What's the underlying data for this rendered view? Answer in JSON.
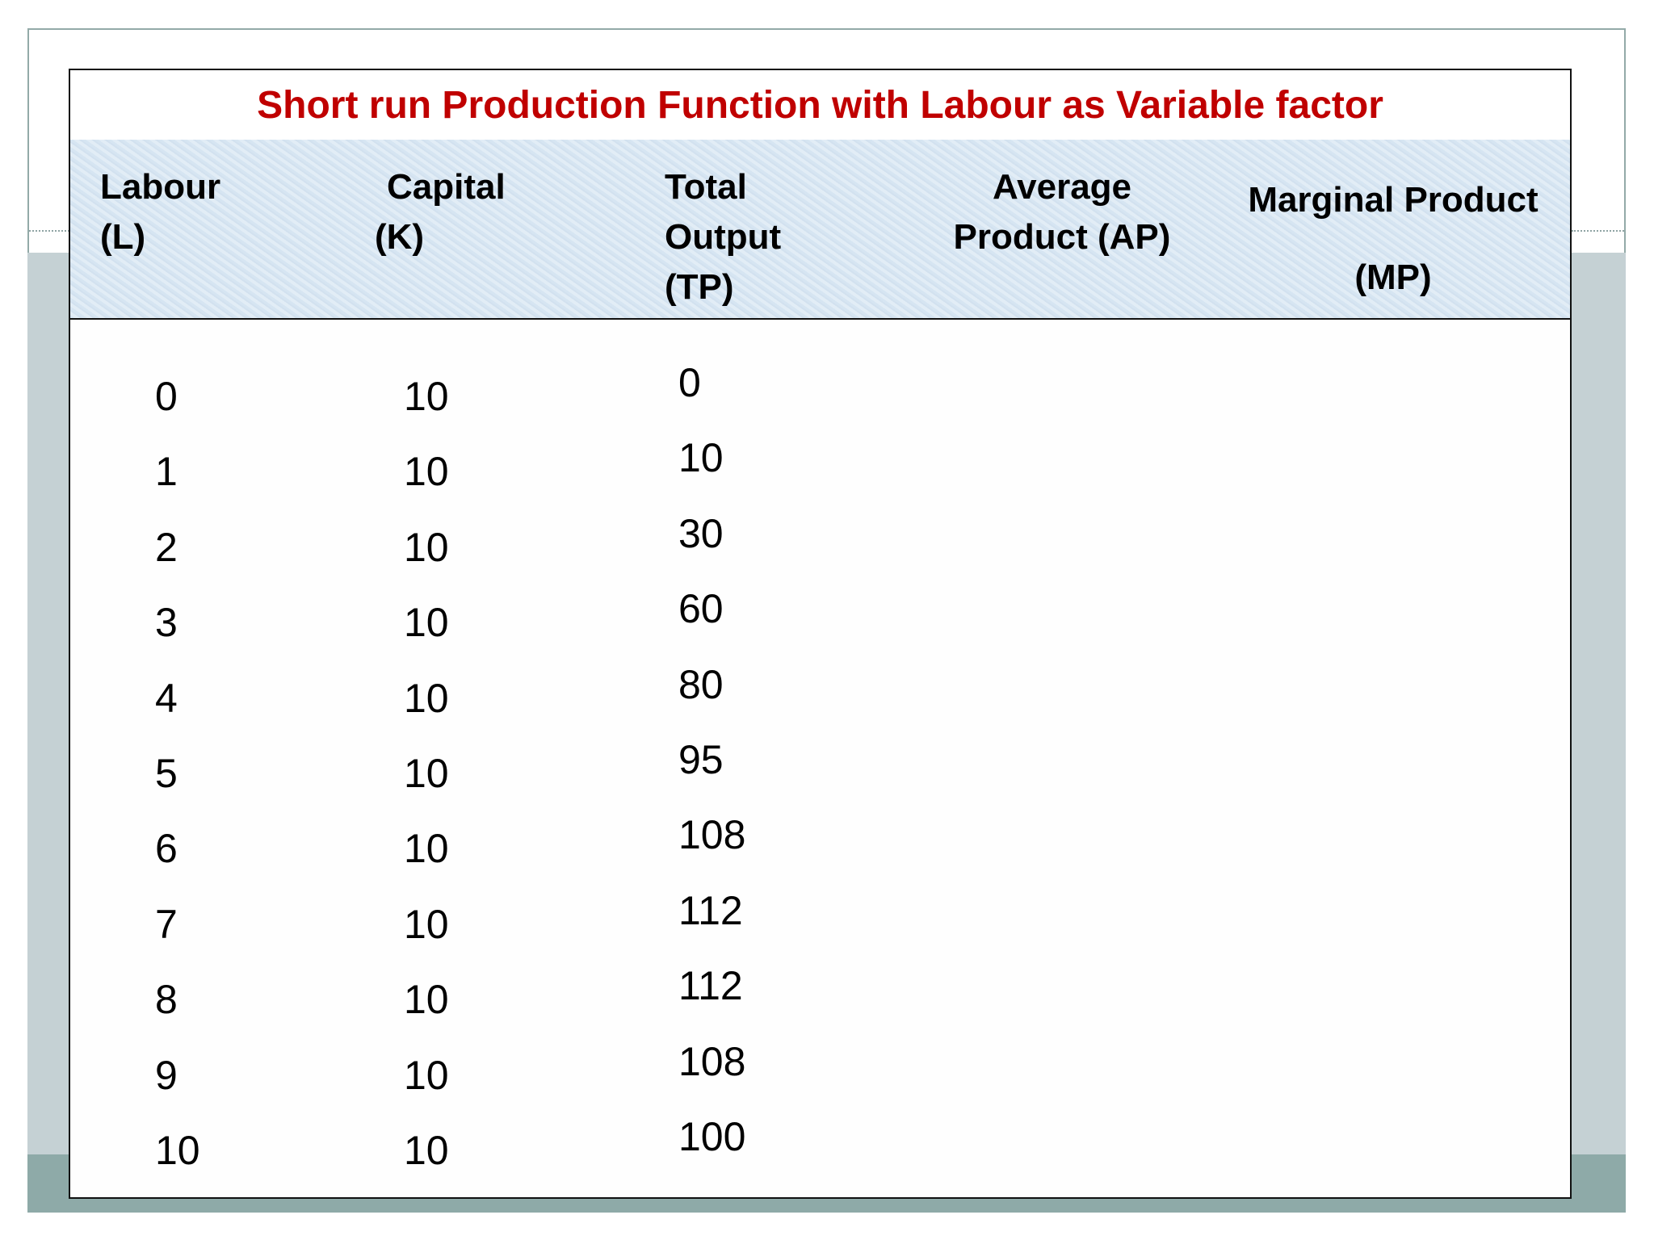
{
  "title": "Short run Production Function with Labour as Variable factor",
  "headers": {
    "labour": [
      "Labour",
      "(L)"
    ],
    "capital": [
      "Capital",
      "(K)"
    ],
    "total_output": [
      "Total",
      "Output",
      "(TP)"
    ],
    "average_product": [
      "Average",
      "Product (AP)"
    ],
    "marginal_product": [
      "Marginal Product",
      "(MP)"
    ]
  },
  "rows": [
    {
      "labour": "0",
      "capital": "10",
      "tp": "0"
    },
    {
      "labour": "1",
      "capital": "10",
      "tp": "10"
    },
    {
      "labour": "2",
      "capital": "10",
      "tp": "30"
    },
    {
      "labour": "3",
      "capital": "10",
      "tp": "60"
    },
    {
      "labour": "4",
      "capital": "10",
      "tp": "80"
    },
    {
      "labour": "5",
      "capital": "10",
      "tp": "95"
    },
    {
      "labour": "6",
      "capital": "10",
      "tp": "108"
    },
    {
      "labour": "7",
      "capital": "10",
      "tp": "112"
    },
    {
      "labour": "8",
      "capital": "10",
      "tp": "112"
    },
    {
      "labour": "9",
      "capital": "10",
      "tp": "108"
    },
    {
      "labour": "10",
      "capital": "10",
      "tp": "100"
    }
  ],
  "colors": {
    "title": "#c00000",
    "header_bg": "#dbe8f3",
    "band_light": "#c5d1d4",
    "band_dark": "#8eaaa8"
  }
}
